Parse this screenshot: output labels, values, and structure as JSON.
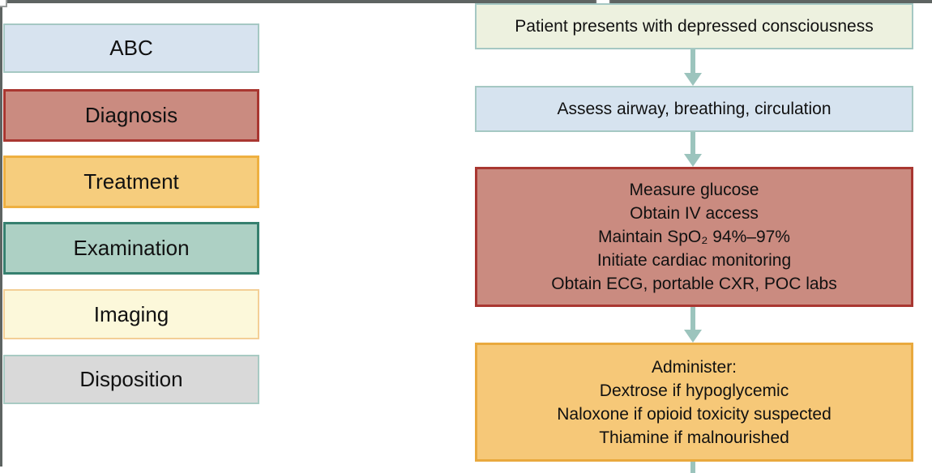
{
  "page": {
    "frame_color": "#5e6462",
    "handle_color": "#ffffff"
  },
  "legend": {
    "items": [
      {
        "label": "ABC",
        "fill": "#d7e3ef",
        "border": "#a5c8c3"
      },
      {
        "label": "Diagnosis",
        "fill": "#ca8b80",
        "border": "#a93731"
      },
      {
        "label": "Treatment",
        "fill": "#f6cd7d",
        "border": "#eeb041"
      },
      {
        "label": "Examination",
        "fill": "#add0c4",
        "border": "#36806f"
      },
      {
        "label": "Imaging",
        "fill": "#fcf8da",
        "border": "#f3cf96"
      },
      {
        "label": "Disposition",
        "fill": "#d9d9d9",
        "border": "#a8cac3"
      }
    ]
  },
  "flow": {
    "arrow_color": "#9cc4bd",
    "nodes": [
      {
        "fill": "#edf1df",
        "border": "#a5c8c3",
        "lines": [
          "Patient presents with depressed consciousness"
        ]
      },
      {
        "fill": "#d6e3ef",
        "border": "#a5c8c3",
        "lines": [
          "Assess airway, breathing, circulation"
        ]
      },
      {
        "fill": "#ca8b80",
        "border": "#a93731",
        "lines": [
          "Measure glucose",
          "Obtain IV access",
          "Maintain SpO₂ 94%–97%",
          "Initiate cardiac monitoring",
          "Obtain ECG, portable CXR, POC labs"
        ]
      },
      {
        "fill": "#f6c878",
        "border": "#e9a93e",
        "lines": [
          "Administer:",
          "Dextrose if hypoglycemic",
          "Naloxone if opioid toxicity suspected",
          "Thiamine if malnourished"
        ]
      }
    ]
  }
}
